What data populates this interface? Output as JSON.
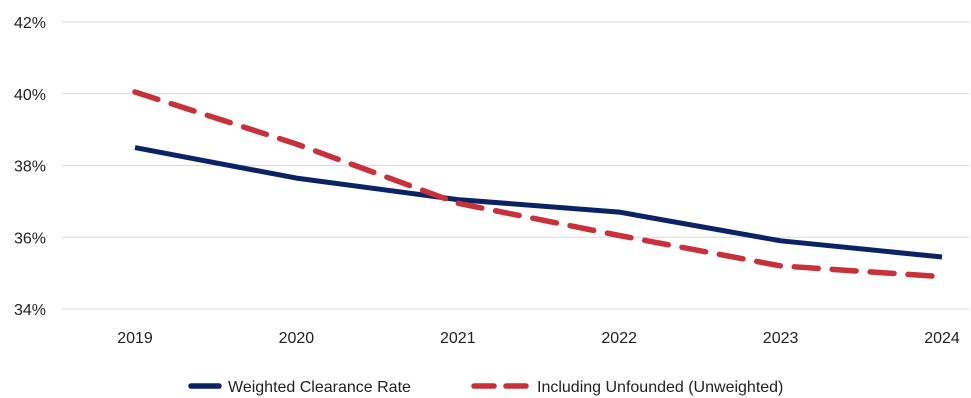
{
  "chart_data": {
    "type": "line",
    "x": [
      "2019",
      "2020",
      "2021",
      "2022",
      "2023",
      "2024"
    ],
    "ylim": [
      34,
      42
    ],
    "y_ticks": [
      34,
      36,
      38,
      40,
      42
    ],
    "y_tick_labels": [
      "34%",
      "36%",
      "38%",
      "40%",
      "42%"
    ],
    "y_unit": "%",
    "grid": "horizontal",
    "legend_position": "bottom",
    "series": [
      {
        "name": "Weighted Clearance Rate",
        "values": [
          38.5,
          37.65,
          37.05,
          36.7,
          35.9,
          35.45
        ],
        "color": "#0b2265",
        "style": "solid"
      },
      {
        "name": "Including Unfounded (Unweighted)",
        "values": [
          40.05,
          38.6,
          36.95,
          36.05,
          35.2,
          34.9
        ],
        "color": "#c8303a",
        "style": "dashed"
      }
    ]
  }
}
